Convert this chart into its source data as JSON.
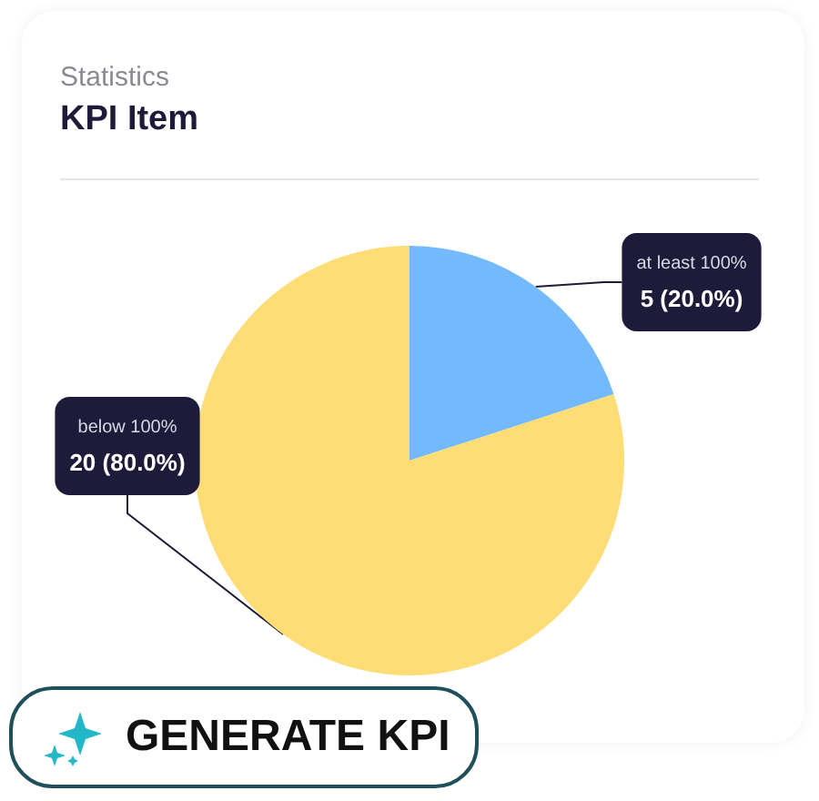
{
  "chart_data": {
    "type": "pie",
    "subtitle": "Statistics",
    "title": "KPI Item",
    "categories": [
      "at least 100%",
      "below 100%"
    ],
    "values": [
      5,
      20
    ],
    "colors": [
      "#74b9fb",
      "#fedc76"
    ],
    "value_labels": [
      "5 (20.0%)",
      "20 (80.0%)"
    ],
    "annotations": [
      "GENERATE KPI"
    ]
  }
}
